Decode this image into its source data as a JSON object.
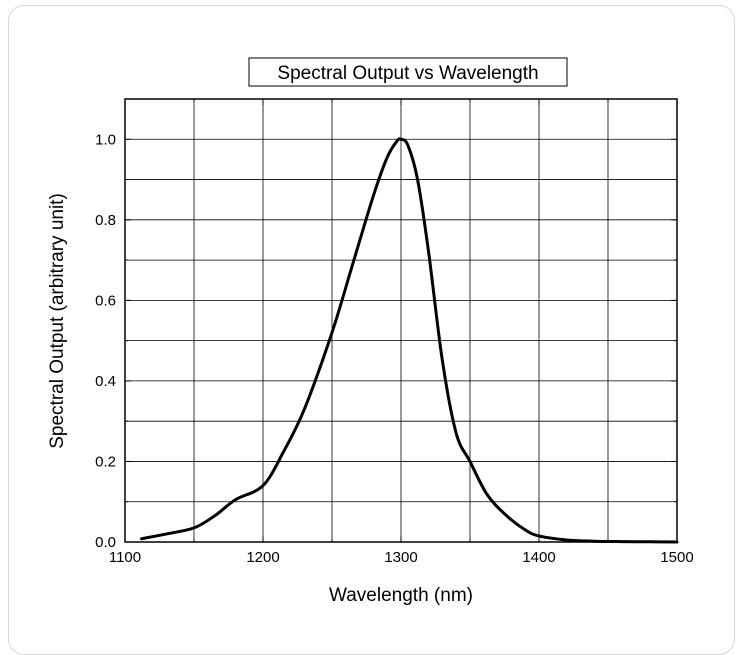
{
  "chart_data": {
    "type": "line",
    "title": "Spectral Output vs Wavelength",
    "xlabel": "Wavelength (nm)",
    "ylabel": "Spectral Output (arbitrary unit)",
    "xlim": [
      1100,
      1500
    ],
    "ylim": [
      0.0,
      1.1
    ],
    "x_ticks": [
      1100,
      1200,
      1300,
      1400,
      1500
    ],
    "x_tick_labels": [
      "1100",
      "1200",
      "1300",
      "1400",
      "1500"
    ],
    "y_ticks": [
      0.0,
      0.2,
      0.4,
      0.6,
      0.8,
      1.0
    ],
    "y_tick_labels": [
      "0.0",
      "0.2",
      "0.4",
      "0.6",
      "0.8",
      "1.0"
    ],
    "grid": true,
    "line_color": "#000000",
    "series": [
      {
        "x": [
          1112,
          1130,
          1150,
          1165,
          1180,
          1200,
          1215,
          1230,
          1250,
          1265,
          1280,
          1290,
          1297,
          1300,
          1305,
          1312,
          1320,
          1330,
          1340,
          1350,
          1362,
          1375,
          1390,
          1400,
          1420,
          1440,
          1460,
          1480,
          1500
        ],
        "y": [
          0.008,
          0.02,
          0.035,
          0.065,
          0.105,
          0.14,
          0.225,
          0.33,
          0.52,
          0.69,
          0.86,
          0.955,
          0.995,
          1.0,
          0.985,
          0.9,
          0.72,
          0.45,
          0.27,
          0.2,
          0.12,
          0.07,
          0.03,
          0.015,
          0.005,
          0.002,
          0.001,
          0.0005,
          0.0
        ]
      }
    ]
  }
}
